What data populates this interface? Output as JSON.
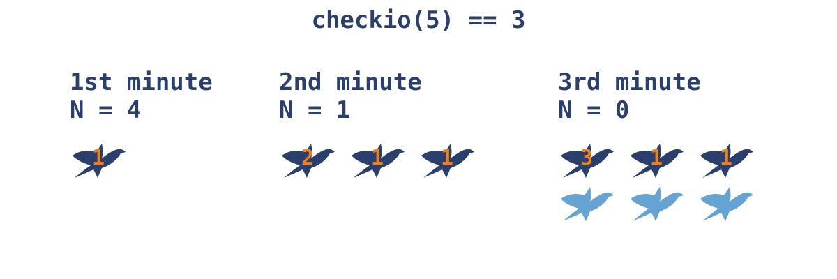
{
  "title": "checkio(5) == 3",
  "colors": {
    "text": "#2a3f6b",
    "bird_adult": "#2a3f6b",
    "bird_new": "#65a3d2",
    "age_number": "#f07f1d"
  },
  "steps": [
    {
      "minute_label": "1st minute",
      "n_label": "N = 4",
      "rows": [
        [
          {
            "type": "adult",
            "age": "1"
          }
        ]
      ]
    },
    {
      "minute_label": "2nd minute",
      "n_label": "N = 1",
      "rows": [
        [
          {
            "type": "adult",
            "age": "2"
          },
          {
            "type": "adult",
            "age": "1"
          },
          {
            "type": "adult",
            "age": "1"
          }
        ]
      ]
    },
    {
      "minute_label": "3rd minute",
      "n_label": "N = 0",
      "rows": [
        [
          {
            "type": "adult",
            "age": "3"
          },
          {
            "type": "adult",
            "age": "1"
          },
          {
            "type": "adult",
            "age": "1"
          }
        ],
        [
          {
            "type": "new"
          },
          {
            "type": "new"
          },
          {
            "type": "new"
          }
        ]
      ]
    }
  ]
}
